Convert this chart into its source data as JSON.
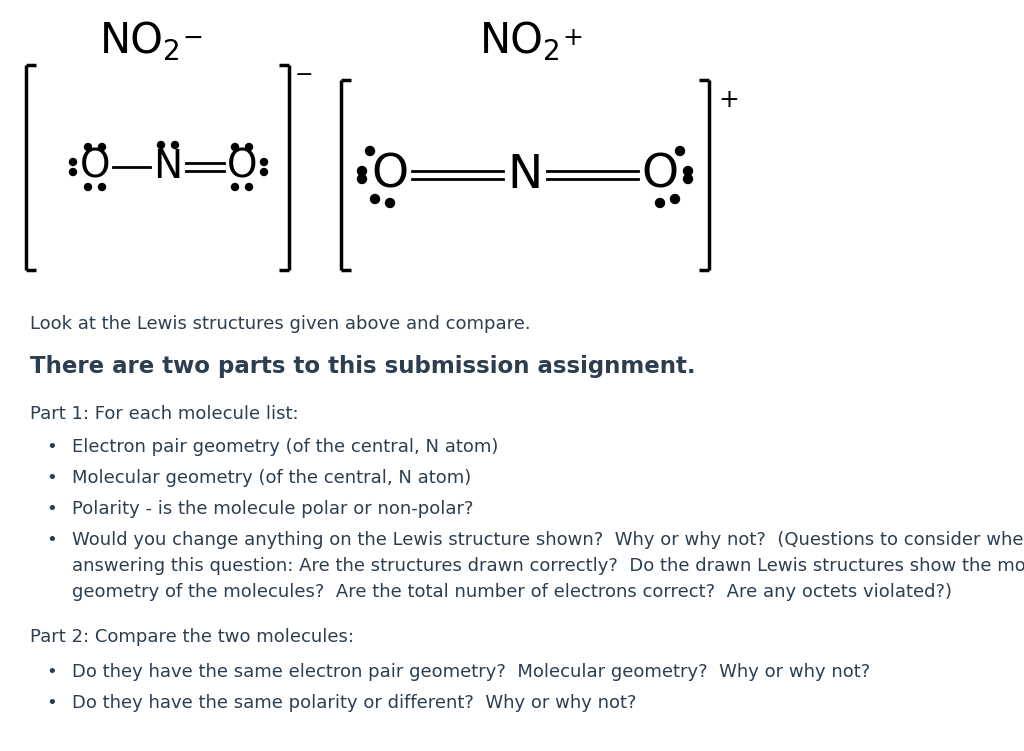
{
  "bg_color": "#ffffff",
  "text_color": "#2d3e50",
  "intro_text": "Look at the Lewis structures given above and compare.",
  "heading": "There are two parts to this submission assignment.",
  "part1_label": "Part 1: For each molecule list:",
  "bullet1_1": "Electron pair geometry (of the central, N atom)",
  "bullet1_2": "Molecular geometry (of the central, N atom)",
  "bullet1_3": "Polarity - is the molecule polar or non-polar?",
  "bullet1_4a": "Would you change anything on the Lewis structure shown?  Why or why not?  (Questions to consider when",
  "bullet1_4b": "answering this question: Are the structures drawn correctly?  Do the drawn Lewis structures show the molecular",
  "bullet1_4c": "geometry of the molecules?  Are the total number of electrons correct?  Are any octets violated?)",
  "part2_label": "Part 2: Compare the two molecules:",
  "bullet2_1": "Do they have the same electron pair geometry?  Molecular geometry?  Why or why not?",
  "bullet2_2": "Do they have the same polarity or different?  Why or why not?"
}
